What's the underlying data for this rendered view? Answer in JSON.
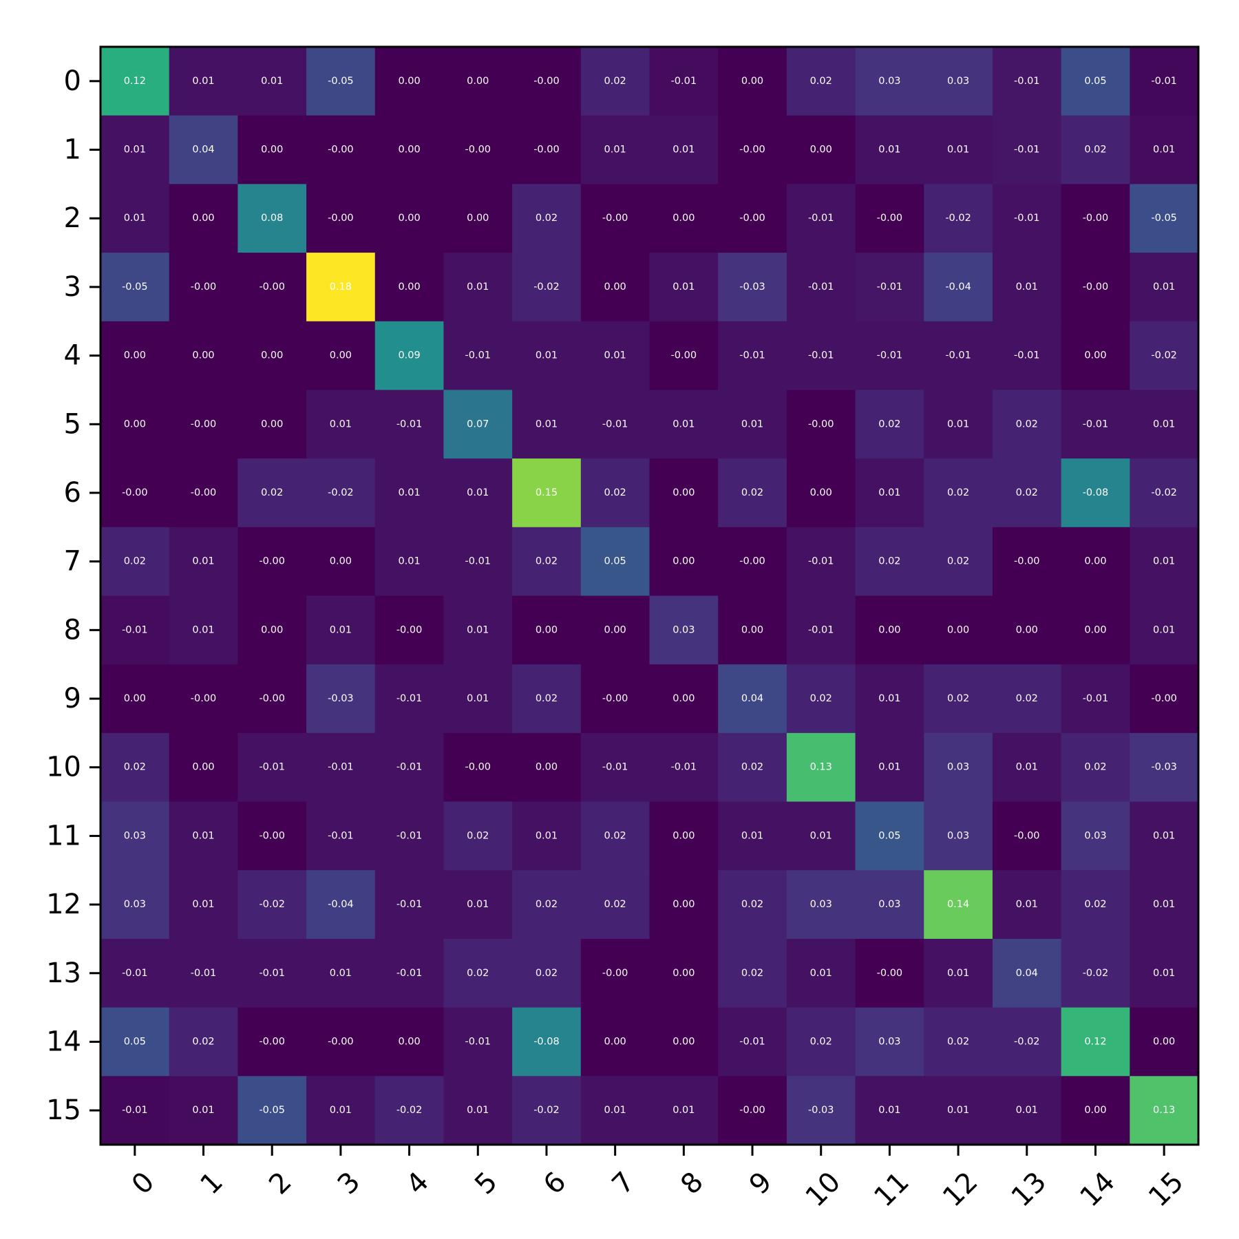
{
  "chart_data": {
    "type": "heatmap",
    "title": "",
    "xlabel": "",
    "ylabel": "",
    "colormap": "viridis",
    "value_range": [
      -0.08,
      0.18
    ],
    "x_categories": [
      "0",
      "1",
      "2",
      "3",
      "4",
      "5",
      "6",
      "7",
      "8",
      "9",
      "10",
      "11",
      "12",
      "13",
      "14",
      "15"
    ],
    "y_categories": [
      "0",
      "1",
      "2",
      "3",
      "4",
      "5",
      "6",
      "7",
      "8",
      "9",
      "10",
      "11",
      "12",
      "13",
      "14",
      "15"
    ],
    "cell_labels": [
      [
        "0.12",
        "0.01",
        "0.01",
        "-0.05",
        "0.00",
        "0.00",
        "-0.00",
        "0.02",
        "-0.01",
        "0.00",
        "0.02",
        "0.03",
        "0.03",
        "-0.01",
        "0.05",
        "-0.01"
      ],
      [
        "0.01",
        "0.04",
        "0.00",
        "-0.00",
        "0.00",
        "-0.00",
        "-0.00",
        "0.01",
        "0.01",
        "-0.00",
        "0.00",
        "0.01",
        "0.01",
        "-0.01",
        "0.02",
        "0.01"
      ],
      [
        "0.01",
        "0.00",
        "0.08",
        "-0.00",
        "0.00",
        "0.00",
        "0.02",
        "-0.00",
        "0.00",
        "-0.00",
        "-0.01",
        "-0.00",
        "-0.02",
        "-0.01",
        "-0.00",
        "-0.05"
      ],
      [
        "-0.05",
        "-0.00",
        "-0.00",
        "0.18",
        "0.00",
        "0.01",
        "-0.02",
        "0.00",
        "0.01",
        "-0.03",
        "-0.01",
        "-0.01",
        "-0.04",
        "0.01",
        "-0.00",
        "0.01"
      ],
      [
        "0.00",
        "0.00",
        "0.00",
        "0.00",
        "0.09",
        "-0.01",
        "0.01",
        "0.01",
        "-0.00",
        "-0.01",
        "-0.01",
        "-0.01",
        "-0.01",
        "-0.01",
        "0.00",
        "-0.02"
      ],
      [
        "0.00",
        "-0.00",
        "0.00",
        "0.01",
        "-0.01",
        "0.07",
        "0.01",
        "-0.01",
        "0.01",
        "0.01",
        "-0.00",
        "0.02",
        "0.01",
        "0.02",
        "-0.01",
        "0.01"
      ],
      [
        "-0.00",
        "-0.00",
        "0.02",
        "-0.02",
        "0.01",
        "0.01",
        "0.15",
        "0.02",
        "0.00",
        "0.02",
        "0.00",
        "0.01",
        "0.02",
        "0.02",
        "-0.08",
        "-0.02"
      ],
      [
        "0.02",
        "0.01",
        "-0.00",
        "0.00",
        "0.01",
        "-0.01",
        "0.02",
        "0.05",
        "0.00",
        "-0.00",
        "-0.01",
        "0.02",
        "0.02",
        "-0.00",
        "0.00",
        "0.01"
      ],
      [
        "-0.01",
        "0.01",
        "0.00",
        "0.01",
        "-0.00",
        "0.01",
        "0.00",
        "0.00",
        "0.03",
        "0.00",
        "-0.01",
        "0.00",
        "0.00",
        "0.00",
        "0.00",
        "0.01"
      ],
      [
        "0.00",
        "-0.00",
        "-0.00",
        "-0.03",
        "-0.01",
        "0.01",
        "0.02",
        "-0.00",
        "0.00",
        "0.04",
        "0.02",
        "0.01",
        "0.02",
        "0.02",
        "-0.01",
        "-0.00"
      ],
      [
        "0.02",
        "0.00",
        "-0.01",
        "-0.01",
        "-0.01",
        "-0.00",
        "0.00",
        "-0.01",
        "-0.01",
        "0.02",
        "0.13",
        "0.01",
        "0.03",
        "0.01",
        "0.02",
        "-0.03"
      ],
      [
        "0.03",
        "0.01",
        "-0.00",
        "-0.01",
        "-0.01",
        "0.02",
        "0.01",
        "0.02",
        "0.00",
        "0.01",
        "0.01",
        "0.05",
        "0.03",
        "-0.00",
        "0.03",
        "0.01"
      ],
      [
        "0.03",
        "0.01",
        "-0.02",
        "-0.04",
        "-0.01",
        "0.01",
        "0.02",
        "0.02",
        "0.00",
        "0.02",
        "0.03",
        "0.03",
        "0.14",
        "0.01",
        "0.02",
        "0.01"
      ],
      [
        "-0.01",
        "-0.01",
        "-0.01",
        "0.01",
        "-0.01",
        "0.02",
        "0.02",
        "-0.00",
        "0.00",
        "0.02",
        "0.01",
        "-0.00",
        "0.01",
        "0.04",
        "-0.02",
        "0.01"
      ],
      [
        "0.05",
        "0.02",
        "-0.00",
        "-0.00",
        "0.00",
        "-0.01",
        "-0.08",
        "0.00",
        "0.00",
        "-0.01",
        "0.02",
        "0.03",
        "0.02",
        "-0.02",
        "0.12",
        "0.00"
      ],
      [
        "-0.01",
        "0.01",
        "-0.05",
        "0.01",
        "-0.02",
        "0.01",
        "-0.02",
        "0.01",
        "0.01",
        "-0.00",
        "-0.03",
        "0.01",
        "0.01",
        "0.01",
        "0.00",
        "0.13"
      ]
    ],
    "color_intensity": [
      [
        0.63,
        0.05,
        0.05,
        0.22,
        0.0,
        0.0,
        0.0,
        0.1,
        0.03,
        0.0,
        0.1,
        0.15,
        0.15,
        0.06,
        0.24,
        0.02
      ],
      [
        0.05,
        0.2,
        0.0,
        0.0,
        0.0,
        0.0,
        0.0,
        0.05,
        0.05,
        0.0,
        0.0,
        0.05,
        0.05,
        0.06,
        0.1,
        0.03
      ],
      [
        0.05,
        0.0,
        0.45,
        0.0,
        0.0,
        0.0,
        0.1,
        0.0,
        0.0,
        0.0,
        0.05,
        0.0,
        0.1,
        0.05,
        0.0,
        0.24
      ],
      [
        0.22,
        0.0,
        0.0,
        1.0,
        0.0,
        0.05,
        0.1,
        0.0,
        0.05,
        0.15,
        0.05,
        0.06,
        0.19,
        0.05,
        0.0,
        0.05
      ],
      [
        0.0,
        0.0,
        0.0,
        0.0,
        0.49,
        0.05,
        0.05,
        0.05,
        0.0,
        0.05,
        0.05,
        0.05,
        0.05,
        0.05,
        0.0,
        0.1
      ],
      [
        0.0,
        0.0,
        0.0,
        0.05,
        0.05,
        0.39,
        0.05,
        0.05,
        0.05,
        0.05,
        0.0,
        0.1,
        0.05,
        0.1,
        0.05,
        0.05
      ],
      [
        0.0,
        0.0,
        0.1,
        0.1,
        0.05,
        0.05,
        0.82,
        0.1,
        0.0,
        0.1,
        0.0,
        0.05,
        0.1,
        0.1,
        0.45,
        0.1
      ],
      [
        0.1,
        0.05,
        0.0,
        0.0,
        0.05,
        0.05,
        0.1,
        0.27,
        0.0,
        0.0,
        0.05,
        0.1,
        0.1,
        0.0,
        0.0,
        0.05
      ],
      [
        0.03,
        0.05,
        0.0,
        0.05,
        0.0,
        0.05,
        0.0,
        0.0,
        0.15,
        0.0,
        0.05,
        0.0,
        0.0,
        0.0,
        0.0,
        0.05
      ],
      [
        0.0,
        0.0,
        0.0,
        0.15,
        0.05,
        0.05,
        0.1,
        0.0,
        0.0,
        0.22,
        0.1,
        0.05,
        0.1,
        0.1,
        0.05,
        0.0
      ],
      [
        0.1,
        0.0,
        0.05,
        0.05,
        0.05,
        0.0,
        0.0,
        0.05,
        0.05,
        0.1,
        0.7,
        0.05,
        0.15,
        0.05,
        0.1,
        0.15
      ],
      [
        0.15,
        0.05,
        0.0,
        0.05,
        0.05,
        0.1,
        0.05,
        0.1,
        0.0,
        0.05,
        0.05,
        0.27,
        0.15,
        0.0,
        0.15,
        0.05
      ],
      [
        0.15,
        0.05,
        0.1,
        0.19,
        0.05,
        0.05,
        0.1,
        0.1,
        0.0,
        0.1,
        0.15,
        0.15,
        0.77,
        0.05,
        0.1,
        0.05
      ],
      [
        0.05,
        0.05,
        0.05,
        0.05,
        0.05,
        0.1,
        0.1,
        0.0,
        0.0,
        0.1,
        0.05,
        0.0,
        0.05,
        0.2,
        0.1,
        0.05
      ],
      [
        0.24,
        0.1,
        0.0,
        0.0,
        0.0,
        0.05,
        0.45,
        0.0,
        0.0,
        0.05,
        0.1,
        0.15,
        0.1,
        0.1,
        0.66,
        0.0
      ],
      [
        0.02,
        0.03,
        0.24,
        0.05,
        0.1,
        0.05,
        0.1,
        0.05,
        0.05,
        0.0,
        0.15,
        0.05,
        0.05,
        0.05,
        0.0,
        0.72
      ]
    ]
  }
}
